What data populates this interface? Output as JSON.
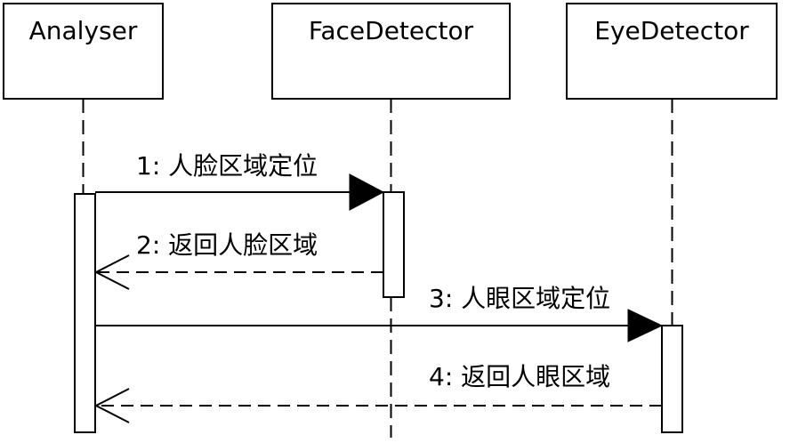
{
  "participants": [
    {
      "name": "Analyser"
    },
    {
      "name": "FaceDetector"
    },
    {
      "name": "EyeDetector"
    }
  ],
  "messages": [
    {
      "number": "1:",
      "text": "人脸区域定位",
      "label": "1: 人脸区域定位",
      "kind": "sync",
      "from": "Analyser",
      "to": "FaceDetector"
    },
    {
      "number": "2:",
      "text": "返回人脸区域",
      "label": "2: 返回人脸区域",
      "kind": "return",
      "from": "FaceDetector",
      "to": "Analyser"
    },
    {
      "number": "3:",
      "text": "人眼区域定位",
      "label": "3: 人眼区域定位",
      "kind": "sync",
      "from": "Analyser",
      "to": "EyeDetector"
    },
    {
      "number": "4:",
      "text": "返回人眼区域",
      "label": "4: 返回人眼区域",
      "kind": "return",
      "from": "EyeDetector",
      "to": "Analyser"
    }
  ],
  "colors": {
    "stroke": "#000000",
    "background": "#ffffff"
  }
}
